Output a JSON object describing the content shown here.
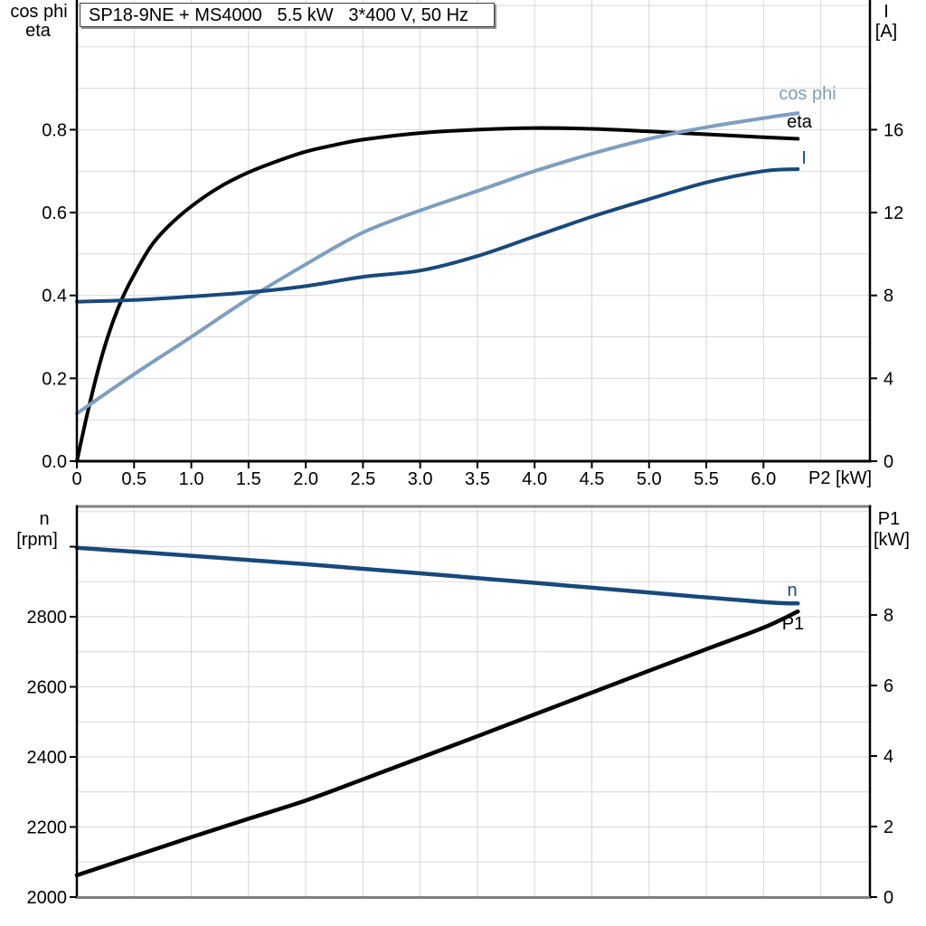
{
  "title_box": {
    "text": "SP18-9NE + MS4000   5.5 kW   3*400 V, 50 Hz"
  },
  "colors": {
    "light_blue": "#7d9ec0",
    "dark_blue": "#17497c",
    "black": "#000000",
    "grid": "#d8d8d8",
    "frame_gray": "#808080",
    "background": "#ffffff"
  },
  "top_chart": {
    "axis_titles": {
      "left1": "cos phi",
      "left2": "eta",
      "right1": "I",
      "right2": "[A]",
      "x": "P2 [kW]"
    }
  },
  "bottom_chart": {
    "axis_titles": {
      "left1": "n",
      "left2": "[rpm]",
      "right1": "P1",
      "right2": "[kW]"
    }
  },
  "chart_data": [
    {
      "type": "line",
      "title": "SP18-9NE + MS4000 5.5 kW 3*400 V, 50 Hz",
      "xlabel": "P2 [kW]",
      "x_range": [
        0,
        6.93
      ],
      "left_axis": {
        "title_lines": [
          "cos phi",
          "eta"
        ],
        "range": [
          0,
          1.113
        ],
        "tick_values": [
          0,
          0.2,
          0.4,
          0.6,
          0.8
        ],
        "tick_labels": [
          "0.0",
          "0.2",
          "0.4",
          "0.6",
          "0.8"
        ]
      },
      "right_axis": {
        "title_lines": [
          "I",
          "[A]"
        ],
        "range": [
          0,
          22.26
        ],
        "tick_values": [
          0,
          4,
          8,
          12,
          16
        ],
        "tick_labels": [
          "0",
          "4",
          "8",
          "12",
          "16"
        ]
      },
      "x_ticks": {
        "values": [
          0,
          0.5,
          1,
          1.5,
          2,
          2.5,
          3,
          3.5,
          4,
          4.5,
          5,
          5.5,
          6
        ],
        "labels": [
          "0",
          "0.5",
          "1.0",
          "1.5",
          "2.0",
          "2.5",
          "3.0",
          "3.5",
          "4.0",
          "4.5",
          "5.0",
          "5.5",
          "6.0"
        ]
      },
      "grid": {
        "on": true,
        "x_step": 0.5,
        "x_max": 6.5,
        "y_step": 0.1
      },
      "legend_position": "end-of-curve",
      "series": [
        {
          "name": "eta",
          "axis": "left",
          "color": "#000000",
          "points": [
            [
              0,
              0
            ],
            [
              0.1,
              0.125
            ],
            [
              0.2,
              0.235
            ],
            [
              0.3,
              0.325
            ],
            [
              0.4,
              0.395
            ],
            [
              0.5,
              0.45
            ],
            [
              0.65,
              0.52
            ],
            [
              0.8,
              0.567
            ],
            [
              1.0,
              0.615
            ],
            [
              1.25,
              0.662
            ],
            [
              1.5,
              0.697
            ],
            [
              1.75,
              0.724
            ],
            [
              2.0,
              0.747
            ],
            [
              2.25,
              0.763
            ],
            [
              2.5,
              0.776
            ],
            [
              3.0,
              0.792
            ],
            [
              3.5,
              0.8
            ],
            [
              4.0,
              0.804
            ],
            [
              4.5,
              0.802
            ],
            [
              5.0,
              0.796
            ],
            [
              5.5,
              0.789
            ],
            [
              6.0,
              0.782
            ],
            [
              6.3,
              0.778
            ]
          ]
        },
        {
          "name": "cos phi",
          "axis": "left",
          "color": "#7d9ec0",
          "points": [
            [
              0,
              0.115
            ],
            [
              0.5,
              0.21
            ],
            [
              1.0,
              0.3
            ],
            [
              1.5,
              0.392
            ],
            [
              2.0,
              0.475
            ],
            [
              2.5,
              0.552
            ],
            [
              3.0,
              0.605
            ],
            [
              3.5,
              0.652
            ],
            [
              4.0,
              0.7
            ],
            [
              4.5,
              0.742
            ],
            [
              5.0,
              0.778
            ],
            [
              5.5,
              0.806
            ],
            [
              6.0,
              0.828
            ],
            [
              6.3,
              0.84
            ]
          ]
        },
        {
          "name": "I",
          "axis": "right",
          "color": "#17497c",
          "points": [
            [
              0,
              7.7
            ],
            [
              0.5,
              7.78
            ],
            [
              1.0,
              7.95
            ],
            [
              1.5,
              8.15
            ],
            [
              2.0,
              8.45
            ],
            [
              2.5,
              8.9
            ],
            [
              3.0,
              9.2
            ],
            [
              3.5,
              9.9
            ],
            [
              4.0,
              10.85
            ],
            [
              4.5,
              11.8
            ],
            [
              5.0,
              12.65
            ],
            [
              5.5,
              13.45
            ],
            [
              6.0,
              14.0
            ],
            [
              6.3,
              14.1
            ]
          ]
        }
      ]
    },
    {
      "type": "line",
      "title": "",
      "xlabel": "",
      "x_range": [
        0,
        6.93
      ],
      "left_axis": {
        "title_lines": [
          "n",
          "[rpm]"
        ],
        "range": [
          2000,
          3115
        ],
        "tick_values": [
          2000,
          2200,
          2400,
          2600,
          2800
        ],
        "tick_labels": [
          "2000",
          "2200",
          "2400",
          "2600",
          "2800"
        ],
        "extra_unlabeled_ticks": [
          3000
        ]
      },
      "right_axis": {
        "title_lines": [
          "P1",
          "[kW]"
        ],
        "range": [
          0,
          11.08
        ],
        "tick_values": [
          0,
          2,
          4,
          6,
          8
        ],
        "tick_labels": [
          "0",
          "2",
          "4",
          "6",
          "8"
        ]
      },
      "x_ticks": {
        "values": [],
        "labels": []
      },
      "grid": {
        "on": true,
        "x_step": 0.5,
        "x_max": 6.5,
        "y_step": 100
      },
      "legend_position": "end-of-curve",
      "series": [
        {
          "name": "n",
          "axis": "left",
          "color": "#17497c",
          "points": [
            [
              0,
              2997
            ],
            [
              1,
              2974
            ],
            [
              2,
              2950
            ],
            [
              3,
              2924
            ],
            [
              4,
              2897
            ],
            [
              5,
              2869
            ],
            [
              6,
              2842
            ],
            [
              6.3,
              2838
            ]
          ]
        },
        {
          "name": "P1",
          "axis": "right",
          "color": "#000000",
          "points": [
            [
              0,
              0.62
            ],
            [
              0.5,
              1.16
            ],
            [
              1.0,
              1.7
            ],
            [
              1.5,
              2.22
            ],
            [
              2.0,
              2.74
            ],
            [
              2.5,
              3.34
            ],
            [
              3.0,
              3.95
            ],
            [
              3.5,
              4.56
            ],
            [
              4.0,
              5.18
            ],
            [
              4.5,
              5.8
            ],
            [
              5.0,
              6.42
            ],
            [
              5.5,
              7.03
            ],
            [
              6.0,
              7.64
            ],
            [
              6.3,
              8.1
            ]
          ]
        }
      ]
    }
  ]
}
